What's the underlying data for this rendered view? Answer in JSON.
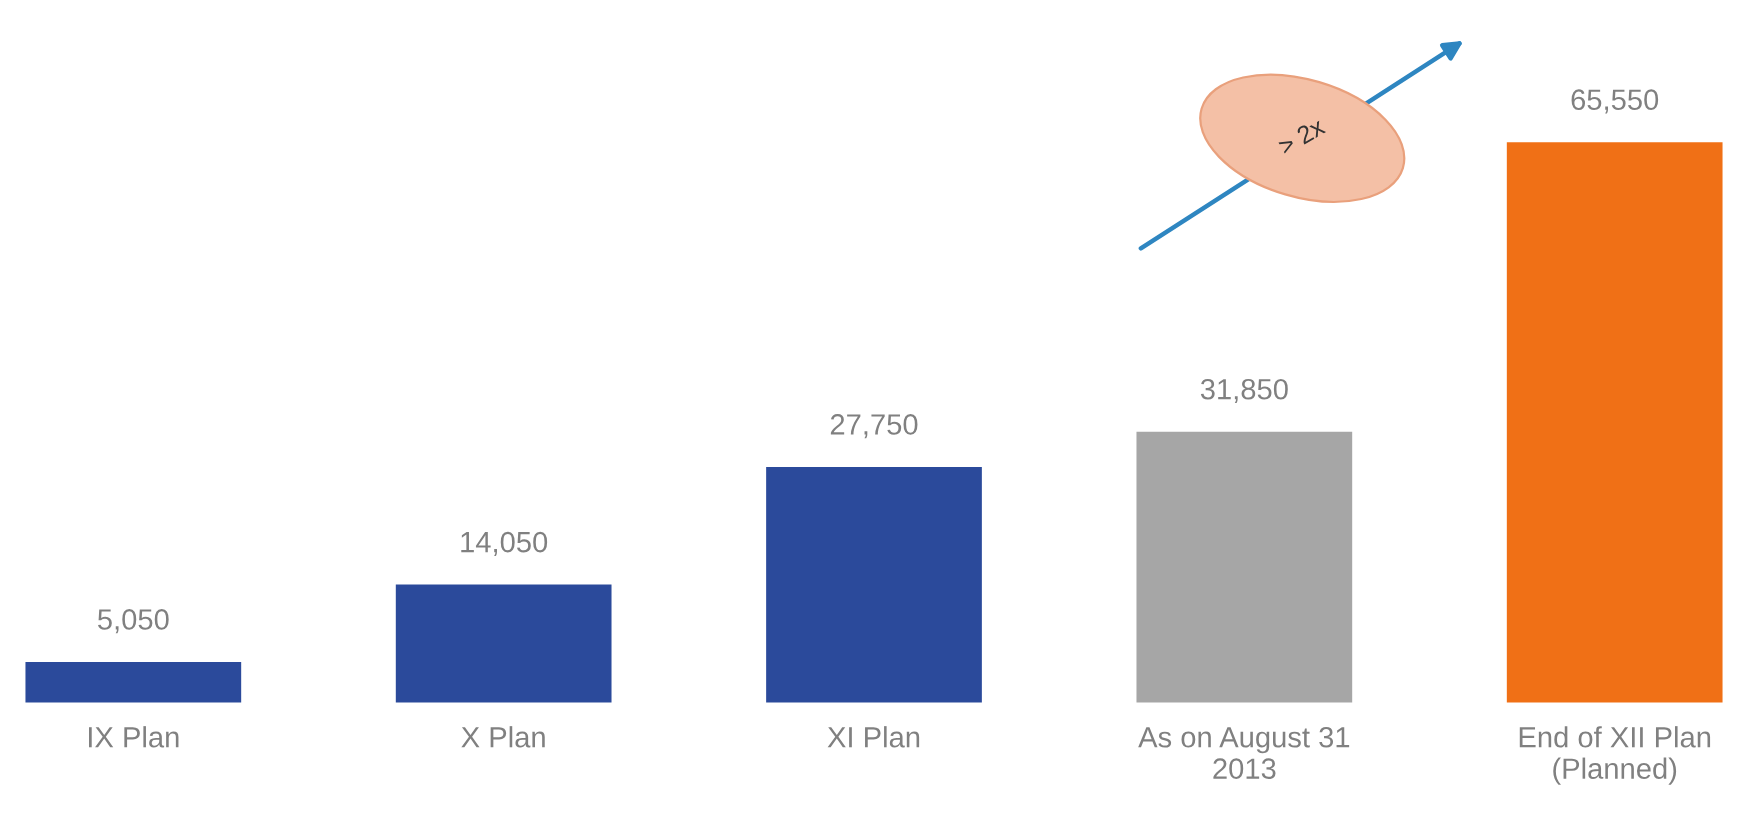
{
  "chart_data": {
    "type": "bar",
    "categories": [
      "IX Plan",
      "X Plan",
      "XI Plan",
      "As on August 31\n2013",
      "End of XII Plan\n(Planned)"
    ],
    "values": [
      5050,
      14050,
      27750,
      31850,
      65550
    ],
    "colors": [
      "#2b4a9b",
      "#2b4a9b",
      "#2b4a9b",
      "#a6a6a6",
      "#f07016"
    ],
    "value_labels": [
      "5,050",
      "14,050",
      "27,750",
      "31,850",
      "65,550"
    ],
    "annotations": [
      "> 2x"
    ]
  }
}
